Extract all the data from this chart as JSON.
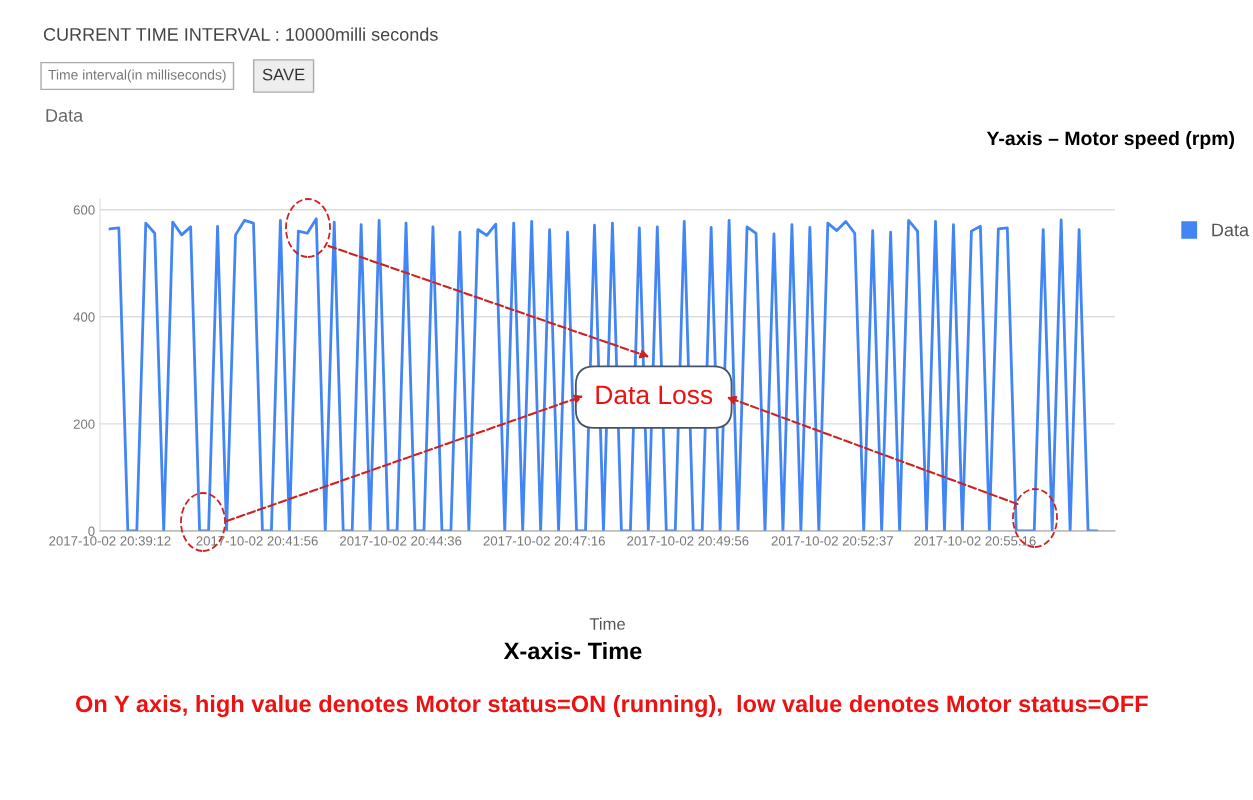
{
  "chart_data": {
    "type": "line",
    "title": "Data",
    "xlabel": "Time",
    "annotations": [
      "CURRENT TIME INTERVAL : 10000milli seconds",
      "Time interval(in milliseconds)",
      "SAVE",
      "Y-axis – Motor speed (rpm)",
      "X-axis- Time",
      "On Y axis, high value denotes Motor status=ON (running),  low value denotes Motor status=OFF",
      {
        "text": "Data Loss",
        "x": "2017-10-02T20:49:18",
        "y": 250
      }
    ],
    "x": [
      "2017-10-02T20:39:12",
      "2017-10-02T20:39:22",
      "2017-10-02T20:39:32",
      "2017-10-02T20:39:42",
      "2017-10-02T20:39:52",
      "2017-10-02T20:40:02",
      "2017-10-02T20:40:12",
      "2017-10-02T20:40:22",
      "2017-10-02T20:40:32",
      "2017-10-02T20:40:42",
      "2017-10-02T20:40:52",
      "2017-10-02T20:41:02",
      "2017-10-02T20:41:12",
      "2017-10-02T20:41:22",
      "2017-10-02T20:41:32",
      "2017-10-02T20:41:42",
      "2017-10-02T20:41:52",
      "2017-10-02T20:42:02",
      "2017-10-02T20:42:12",
      "2017-10-02T20:42:22",
      "2017-10-02T20:42:32",
      "2017-10-02T20:42:42",
      "2017-10-02T20:42:52",
      "2017-10-02T20:43:02",
      "2017-10-02T20:43:12",
      "2017-10-02T20:43:22",
      "2017-10-02T20:43:32",
      "2017-10-02T20:43:42",
      "2017-10-02T20:43:52",
      "2017-10-02T20:44:02",
      "2017-10-02T20:44:12",
      "2017-10-02T20:44:22",
      "2017-10-02T20:44:32",
      "2017-10-02T20:44:42",
      "2017-10-02T20:44:52",
      "2017-10-02T20:45:02",
      "2017-10-02T20:45:12",
      "2017-10-02T20:45:22",
      "2017-10-02T20:45:32",
      "2017-10-02T20:45:42",
      "2017-10-02T20:45:52",
      "2017-10-02T20:46:02",
      "2017-10-02T20:46:12",
      "2017-10-02T20:46:22",
      "2017-10-02T20:46:32",
      "2017-10-02T20:46:42",
      "2017-10-02T20:46:52",
      "2017-10-02T20:47:02",
      "2017-10-02T20:47:12",
      "2017-10-02T20:47:22",
      "2017-10-02T20:47:32",
      "2017-10-02T20:47:42",
      "2017-10-02T20:47:52",
      "2017-10-02T20:48:02",
      "2017-10-02T20:48:12",
      "2017-10-02T20:48:22",
      "2017-10-02T20:48:32",
      "2017-10-02T20:48:42",
      "2017-10-02T20:48:52",
      "2017-10-02T20:49:02",
      "2017-10-02T20:49:12",
      "2017-10-02T20:49:22",
      "2017-10-02T20:49:32",
      "2017-10-02T20:49:42",
      "2017-10-02T20:49:52",
      "2017-10-02T20:50:02",
      "2017-10-02T20:50:12",
      "2017-10-02T20:50:22",
      "2017-10-02T20:50:32",
      "2017-10-02T20:50:42",
      "2017-10-02T20:50:52",
      "2017-10-02T20:51:02",
      "2017-10-02T20:51:12",
      "2017-10-02T20:51:22",
      "2017-10-02T20:51:32",
      "2017-10-02T20:51:42",
      "2017-10-02T20:51:52",
      "2017-10-02T20:52:02",
      "2017-10-02T20:52:12",
      "2017-10-02T20:52:22",
      "2017-10-02T20:52:32",
      "2017-10-02T20:52:42",
      "2017-10-02T20:52:52",
      "2017-10-02T20:53:02",
      "2017-10-02T20:53:12",
      "2017-10-02T20:53:22",
      "2017-10-02T20:53:32",
      "2017-10-02T20:53:42",
      "2017-10-02T20:53:52",
      "2017-10-02T20:54:02",
      "2017-10-02T20:54:12",
      "2017-10-02T20:54:22",
      "2017-10-02T20:54:32",
      "2017-10-02T20:54:42",
      "2017-10-02T20:54:52",
      "2017-10-02T20:55:02",
      "2017-10-02T20:55:12",
      "2017-10-02T20:55:22",
      "2017-10-02T20:55:32",
      "2017-10-02T20:55:42",
      "2017-10-02T20:55:52",
      "2017-10-02T20:56:02",
      "2017-10-02T20:56:12",
      "2017-10-02T20:56:22",
      "2017-10-02T20:56:32",
      "2017-10-02T20:56:42",
      "2017-10-02T20:56:52",
      "2017-10-02T20:57:02",
      "2017-10-02T20:57:12",
      "2017-10-02T20:57:22",
      "2017-10-02T20:57:32"
    ],
    "series": [
      {
        "name": "Data",
        "color": "#4285f4",
        "values": [
          564,
          566,
          0,
          0,
          575,
          556,
          0,
          577,
          553,
          568,
          0,
          0,
          569,
          0,
          553,
          580,
          575,
          0,
          0,
          580,
          0,
          560,
          556,
          583,
          0,
          577,
          0,
          0,
          572,
          0,
          580,
          0,
          0,
          575,
          0,
          0,
          568,
          0,
          0,
          558,
          0,
          563,
          552,
          573,
          0,
          575,
          0,
          578,
          0,
          563,
          0,
          558,
          0,
          0,
          571,
          0,
          575,
          0,
          0,
          566,
          0,
          568,
          0,
          0,
          578,
          0,
          0,
          567,
          0,
          580,
          0,
          568,
          556,
          0,
          555,
          0,
          572,
          0,
          567,
          0,
          575,
          561,
          578,
          556,
          0,
          561,
          0,
          558,
          0,
          580,
          560,
          0,
          578,
          0,
          572,
          0,
          560,
          569,
          0,
          564,
          566,
          0,
          0,
          0,
          563,
          0,
          581,
          0,
          563,
          0,
          0
        ]
      }
    ],
    "xlim": [
      "2017-10-02T20:39:01",
      "2017-10-02T20:57:52"
    ],
    "xticks": [
      {
        "value": "2017-10-02T20:39:12",
        "label": "2017-10-02 20:39:12"
      },
      {
        "value": "2017-10-02T20:41:56",
        "label": "2017-10-02 20:41:56"
      },
      {
        "value": "2017-10-02T20:44:36",
        "label": "2017-10-02 20:44:36"
      },
      {
        "value": "2017-10-02T20:47:16",
        "label": "2017-10-02 20:47:16"
      },
      {
        "value": "2017-10-02T20:49:56",
        "label": "2017-10-02 20:49:56"
      },
      {
        "value": "2017-10-02T20:52:37",
        "label": "2017-10-02 20:52:37"
      },
      {
        "value": "2017-10-02T20:55:16",
        "label": "2017-10-02 20:55:16"
      }
    ],
    "ylim": [
      0,
      620
    ],
    "yticks": [
      0,
      200,
      400,
      600
    ],
    "grid": "y",
    "legend": "top right"
  }
}
